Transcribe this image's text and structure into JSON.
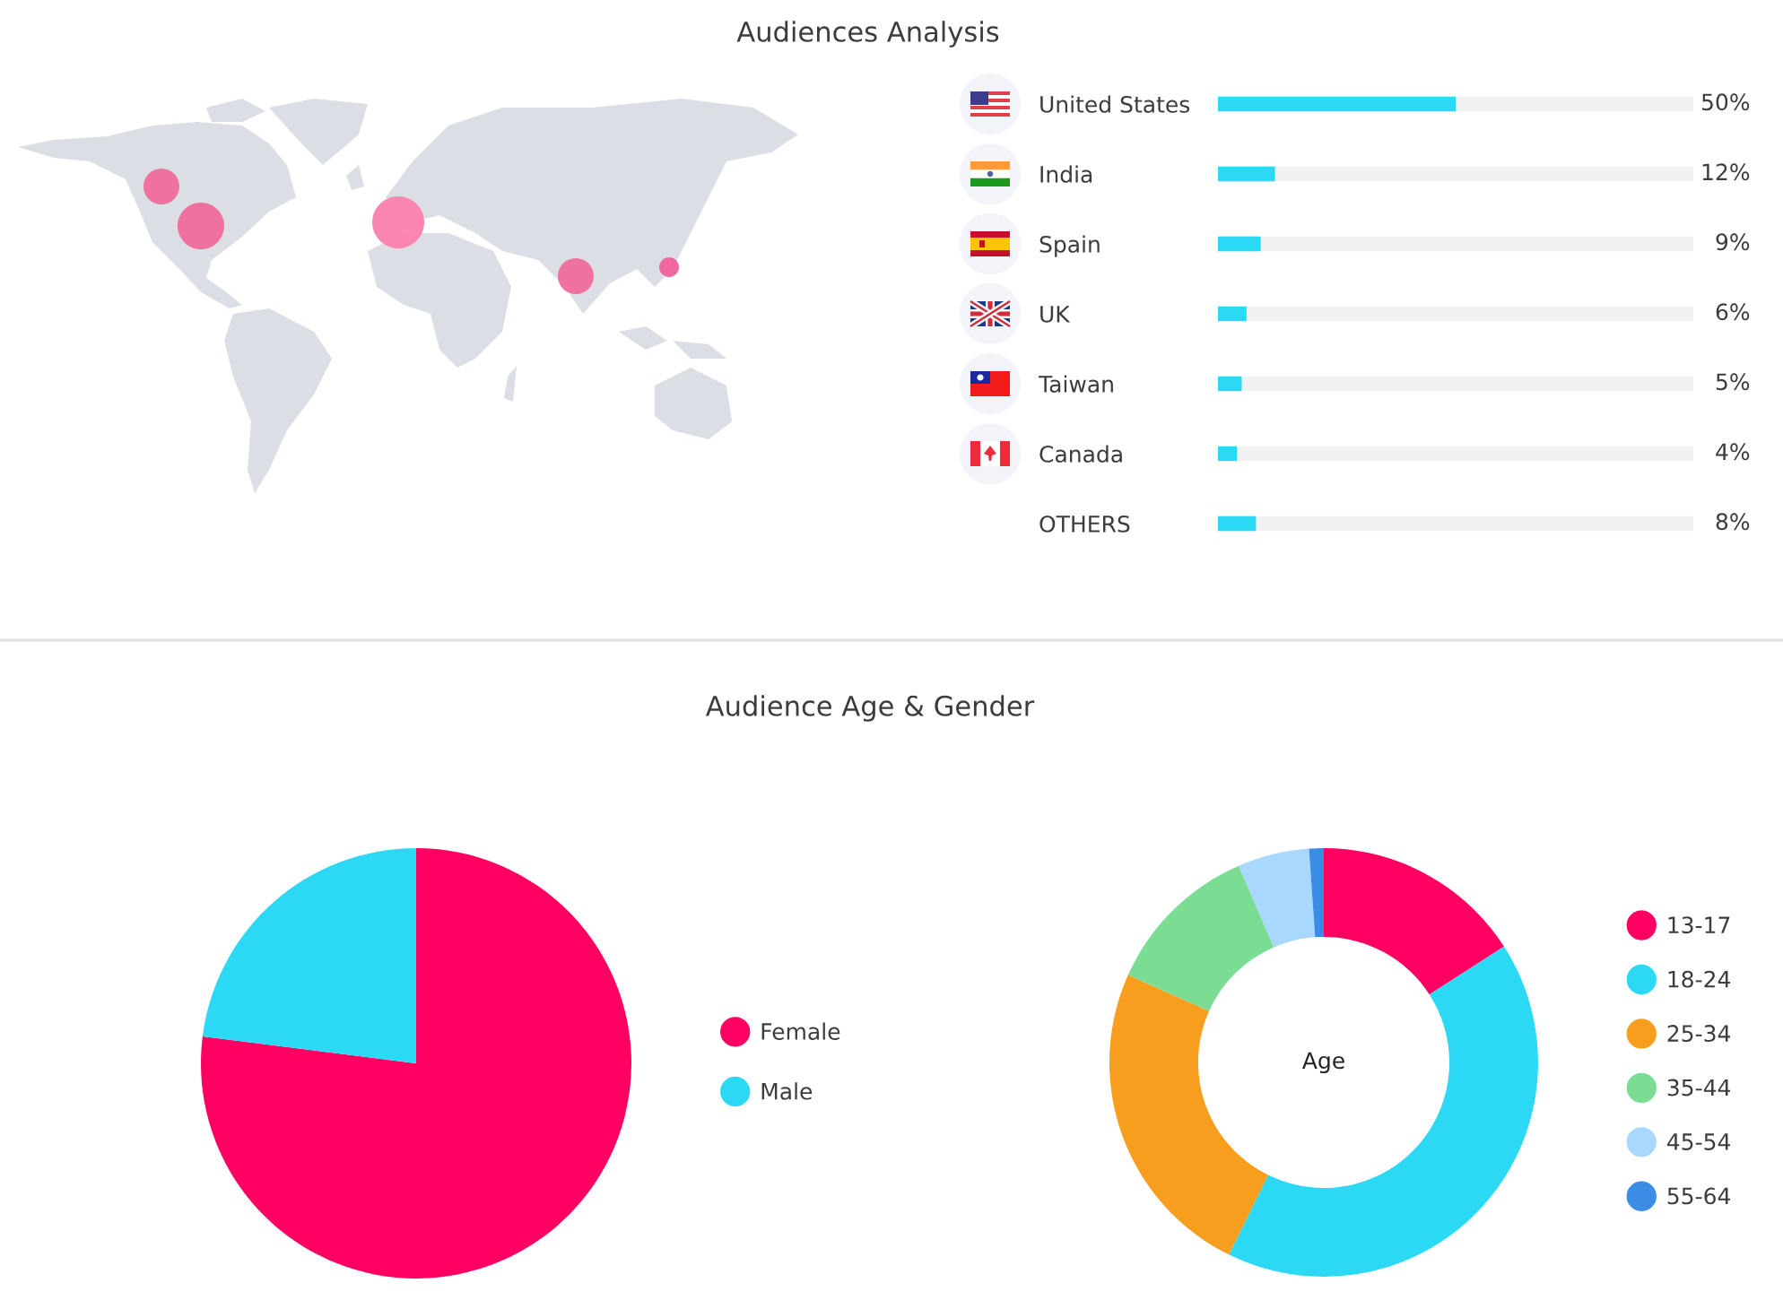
{
  "chart_data": [
    {
      "type": "bar",
      "title": "Audiences Analysis",
      "orientation": "horizontal",
      "categories": [
        "United States",
        "India",
        "Spain",
        "UK",
        "Taiwan",
        "Canada",
        "OTHERS"
      ],
      "values": [
        50,
        12,
        9,
        6,
        5,
        4,
        8
      ],
      "value_labels": [
        "50%",
        "12%",
        "9%",
        "6%",
        "5%",
        "4%",
        "8%"
      ],
      "color": "#2bd9f5",
      "xlim": [
        0,
        100
      ],
      "tick_labels": "y"
    },
    {
      "type": "pie",
      "title": "Audience Age & Gender",
      "categories": [
        "Female",
        "Male"
      ],
      "values": [
        77,
        23
      ],
      "colors": [
        "#ff0062",
        "#2bd9f5"
      ],
      "legend": "right"
    },
    {
      "type": "donut",
      "annotations": [
        "Age"
      ],
      "categories": [
        "13-17",
        "18-24",
        "25-34",
        "35-44",
        "45-54",
        "55-64"
      ],
      "values": [
        15.9,
        41.4,
        24.4,
        11.8,
        5.4,
        1.1
      ],
      "colors": [
        "#ff0062",
        "#2bd9f5",
        "#f79e1e",
        "#7bdd94",
        "#a8d8fd",
        "#3a8ce4"
      ],
      "legend": "right"
    }
  ]
}
